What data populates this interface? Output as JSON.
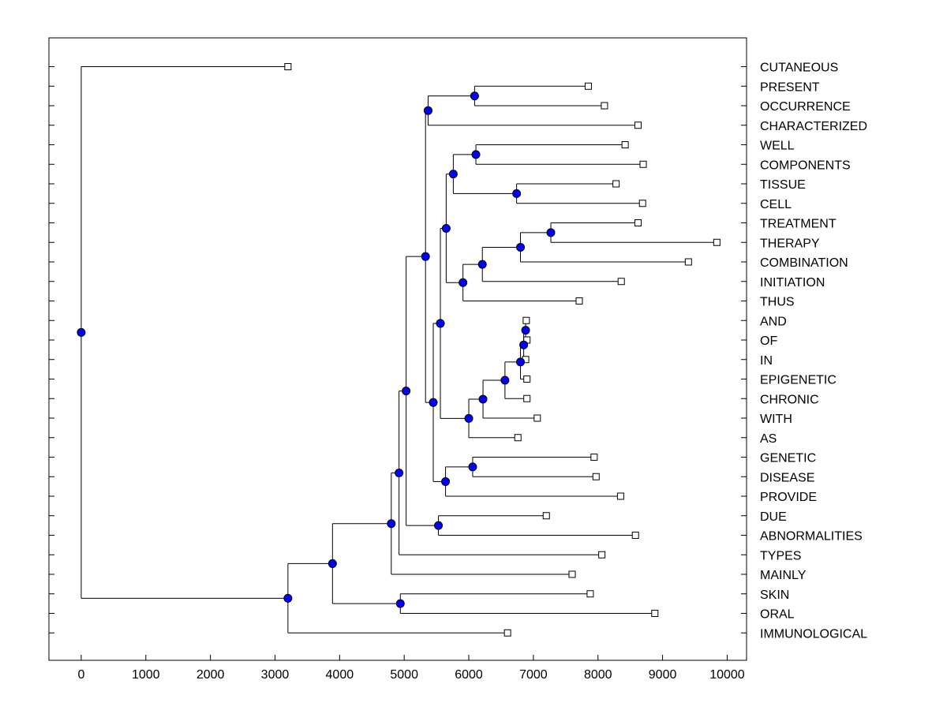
{
  "chart_data": {
    "type": "dendrogram",
    "orientation": "horizontal",
    "xlim": [
      -500,
      10300
    ],
    "xticks": [
      0,
      1000,
      2000,
      3000,
      4000,
      5000,
      6000,
      7000,
      8000,
      9000,
      10000
    ],
    "xtick_labels": [
      "0",
      "1000",
      "2000",
      "3000",
      "4000",
      "5000",
      "6000",
      "7000",
      "8000",
      "9000",
      "10000"
    ],
    "leaves": [
      {
        "label": "CUTANEOUS",
        "x": 3200
      },
      {
        "label": "PRESENT",
        "x": 7850
      },
      {
        "label": "OCCURRENCE",
        "x": 8100
      },
      {
        "label": "CHARACTERIZED",
        "x": 8620
      },
      {
        "label": "WELL",
        "x": 8420
      },
      {
        "label": "COMPONENTS",
        "x": 8700
      },
      {
        "label": "TISSUE",
        "x": 8280
      },
      {
        "label": "CELL",
        "x": 8690
      },
      {
        "label": "TREATMENT",
        "x": 8620
      },
      {
        "label": "THERAPY",
        "x": 9840
      },
      {
        "label": "COMBINATION",
        "x": 9400
      },
      {
        "label": "INITIATION",
        "x": 8360
      },
      {
        "label": "THUS",
        "x": 7710
      },
      {
        "label": "AND",
        "x": 6890
      },
      {
        "label": "OF",
        "x": 6900
      },
      {
        "label": "IN",
        "x": 6880
      },
      {
        "label": "EPIGENETIC",
        "x": 6900
      },
      {
        "label": "CHRONIC",
        "x": 6900
      },
      {
        "label": "WITH",
        "x": 7060
      },
      {
        "label": "AS",
        "x": 6760
      },
      {
        "label": "GENETIC",
        "x": 7940
      },
      {
        "label": "DISEASE",
        "x": 7970
      },
      {
        "label": "PROVIDE",
        "x": 8350
      },
      {
        "label": "DUE",
        "x": 7200
      },
      {
        "label": "ABNORMALITIES",
        "x": 8580
      },
      {
        "label": "TYPES",
        "x": 8060
      },
      {
        "label": "MAINLY",
        "x": 7600
      },
      {
        "label": "SKIN",
        "x": 7880
      },
      {
        "label": "ORAL",
        "x": 8880
      },
      {
        "label": "IMMUNOLOGICAL",
        "x": 6600
      }
    ],
    "merges": [
      {
        "id": "m1",
        "x": 6880,
        "children": [
          "L13",
          "L14"
        ]
      },
      {
        "id": "m2",
        "x": 6850,
        "children": [
          "m1",
          "L15"
        ]
      },
      {
        "id": "m3",
        "x": 6800,
        "children": [
          "m2",
          "L16"
        ]
      },
      {
        "id": "m4",
        "x": 6560,
        "children": [
          "m3",
          "L17"
        ]
      },
      {
        "id": "m5",
        "x": 6220,
        "children": [
          "m4",
          "L18"
        ]
      },
      {
        "id": "m6",
        "x": 6000,
        "children": [
          "m5",
          "L19"
        ]
      },
      {
        "id": "m7",
        "x": 6090,
        "children": [
          "L1",
          "L2"
        ]
      },
      {
        "id": "m8",
        "x": 5370,
        "children": [
          "m7",
          "L3"
        ]
      },
      {
        "id": "m9",
        "x": 6110,
        "children": [
          "L4",
          "L5"
        ]
      },
      {
        "id": "m10",
        "x": 6740,
        "children": [
          "L6",
          "L7"
        ]
      },
      {
        "id": "m11",
        "x": 5760,
        "children": [
          "m9",
          "m10"
        ]
      },
      {
        "id": "m12",
        "x": 7270,
        "children": [
          "L8",
          "L9"
        ]
      },
      {
        "id": "m13",
        "x": 6800,
        "children": [
          "m12",
          "L10"
        ]
      },
      {
        "id": "m14",
        "x": 6210,
        "children": [
          "m13",
          "L11"
        ]
      },
      {
        "id": "m15",
        "x": 5910,
        "children": [
          "m14",
          "L12"
        ]
      },
      {
        "id": "m16",
        "x": 5650,
        "children": [
          "m11",
          "m15"
        ]
      },
      {
        "id": "m17",
        "x": 5560,
        "children": [
          "m16",
          "m6"
        ]
      },
      {
        "id": "m18",
        "x": 6060,
        "children": [
          "L20",
          "L21"
        ]
      },
      {
        "id": "m19",
        "x": 5640,
        "children": [
          "m18",
          "L22"
        ]
      },
      {
        "id": "m20",
        "x": 5450,
        "children": [
          "m17",
          "m19"
        ]
      },
      {
        "id": "m21",
        "x": 5330,
        "children": [
          "m8",
          "m20"
        ]
      },
      {
        "id": "m22",
        "x": 5530,
        "children": [
          "L23",
          "L24"
        ]
      },
      {
        "id": "m23",
        "x": 5030,
        "children": [
          "m21",
          "m22"
        ]
      },
      {
        "id": "m24",
        "x": 4920,
        "children": [
          "m23",
          "L25"
        ]
      },
      {
        "id": "m25",
        "x": 4800,
        "children": [
          "m24",
          "L26"
        ]
      },
      {
        "id": "m26",
        "x": 4940,
        "children": [
          "L27",
          "L28"
        ]
      },
      {
        "id": "m27",
        "x": 3890,
        "children": [
          "m25",
          "m26"
        ]
      },
      {
        "id": "m28",
        "x": 3200,
        "children": [
          "m27",
          "L29"
        ]
      },
      {
        "id": "m29",
        "x": 0,
        "children": [
          "L0",
          "m28"
        ]
      }
    ]
  },
  "colors": {
    "node_fill": "#0000ff",
    "line": "#000000",
    "leaf_box": "#ffffff"
  }
}
